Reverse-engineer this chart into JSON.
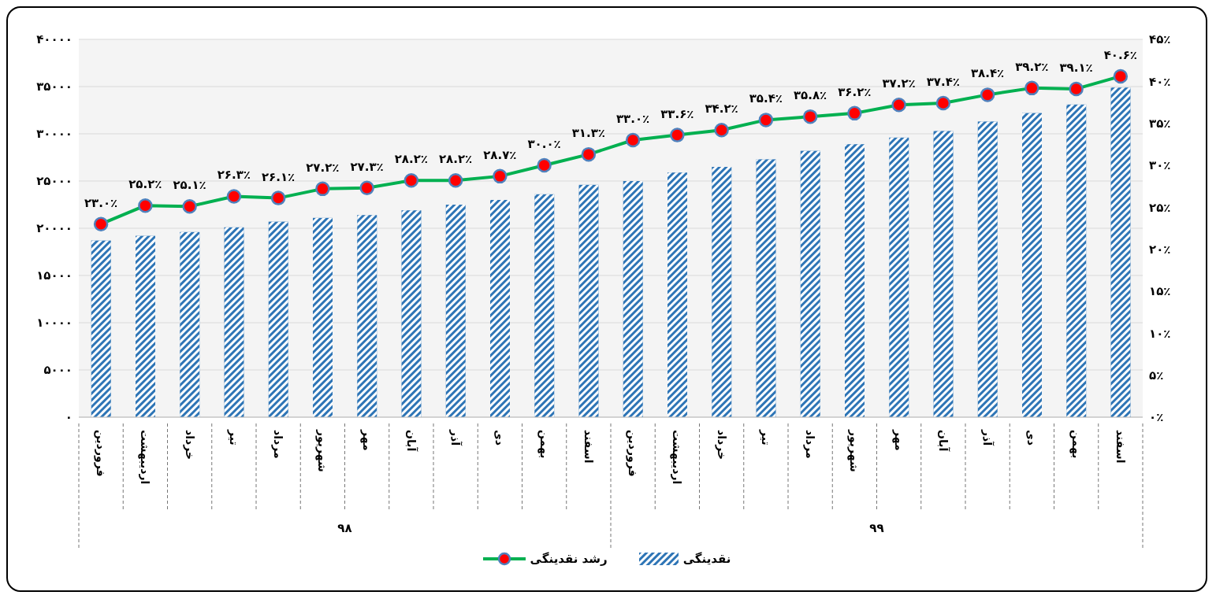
{
  "chart_data": {
    "type": "line",
    "categories": [
      "فروردین",
      "اردیبهشت",
      "خرداد",
      "تیر",
      "مرداد",
      "شهریور",
      "مهر",
      "آبان",
      "آذر",
      "دی",
      "بهمن",
      "اسفند",
      "فروردین",
      "اردیبهشت",
      "خرداد",
      "تیر",
      "مرداد",
      "شهریور",
      "مهر",
      "آبان",
      "آذر",
      "دی",
      "بهمن",
      "اسفند"
    ],
    "series": [
      {
        "name": "نقدینگی",
        "type": "bar",
        "color": "#2e75b6",
        "values": [
          18700,
          19200,
          19600,
          20100,
          20700,
          21100,
          21400,
          21900,
          22500,
          23000,
          23600,
          24600,
          25000,
          25900,
          26500,
          27300,
          28200,
          28900,
          29600,
          30300,
          31300,
          32200,
          33100,
          34900
        ]
      },
      {
        "name": "رشد نقدینگی",
        "axis": "y2",
        "color": "#00b050",
        "values": [
          23.0,
          25.2,
          25.1,
          26.3,
          26.1,
          27.2,
          27.3,
          28.2,
          28.2,
          28.7,
          30.0,
          31.3,
          33.0,
          33.6,
          34.2,
          35.4,
          35.8,
          36.2,
          37.2,
          37.4,
          38.4,
          39.2,
          39.1,
          40.6
        ],
        "value_labels": [
          "۲۳.۰٪",
          "۲۵.۲٪",
          "۲۵.۱٪",
          "۲۶.۳٪",
          "۲۶.۱٪",
          "۲۷.۲٪",
          "۲۷.۳٪",
          "۲۸.۲٪",
          "۲۸.۲٪",
          "۲۸.۷٪",
          "۳۰.۰٪",
          "۳۱.۳٪",
          "۳۳.۰٪",
          "۳۳.۶٪",
          "۳۴.۲٪",
          "۳۵.۴٪",
          "۳۵.۸٪",
          "۳۶.۲٪",
          "۳۷.۲٪",
          "۳۷.۴٪",
          "۳۸.۴٪",
          "۳۹.۲٪",
          "۳۹.۱٪",
          "۴۰.۶٪"
        ]
      }
    ],
    "annotations": [
      "۹۸",
      "۹۹"
    ],
    "ylim": [
      0,
      40000
    ],
    "yticks": [
      {
        "value": 0,
        "label": "۰"
      },
      {
        "value": 5000,
        "label": "۵۰۰۰"
      },
      {
        "value": 10000,
        "label": "۱۰۰۰۰"
      },
      {
        "value": 15000,
        "label": "۱۵۰۰۰"
      },
      {
        "value": 20000,
        "label": "۲۰۰۰۰"
      },
      {
        "value": 25000,
        "label": "۲۵۰۰۰"
      },
      {
        "value": 30000,
        "label": "۳۰۰۰۰"
      },
      {
        "value": 35000,
        "label": "۳۵۰۰۰"
      },
      {
        "value": 40000,
        "label": "۴۰۰۰۰"
      }
    ],
    "y2lim": [
      0,
      45
    ],
    "y2ticks": [
      {
        "value": 0,
        "label": "۰٪"
      },
      {
        "value": 5,
        "label": "۵٪"
      },
      {
        "value": 10,
        "label": "۱۰٪"
      },
      {
        "value": 15,
        "label": "۱۵٪"
      },
      {
        "value": 20,
        "label": "۲۰٪"
      },
      {
        "value": 25,
        "label": "۲۵٪"
      },
      {
        "value": 30,
        "label": "۳۰٪"
      },
      {
        "value": 35,
        "label": "۳۵٪"
      },
      {
        "value": 40,
        "label": "۴۰٪"
      },
      {
        "value": 45,
        "label": "۴۵٪"
      }
    ],
    "grid": "y",
    "legend": "bottom",
    "marker": "circle"
  }
}
